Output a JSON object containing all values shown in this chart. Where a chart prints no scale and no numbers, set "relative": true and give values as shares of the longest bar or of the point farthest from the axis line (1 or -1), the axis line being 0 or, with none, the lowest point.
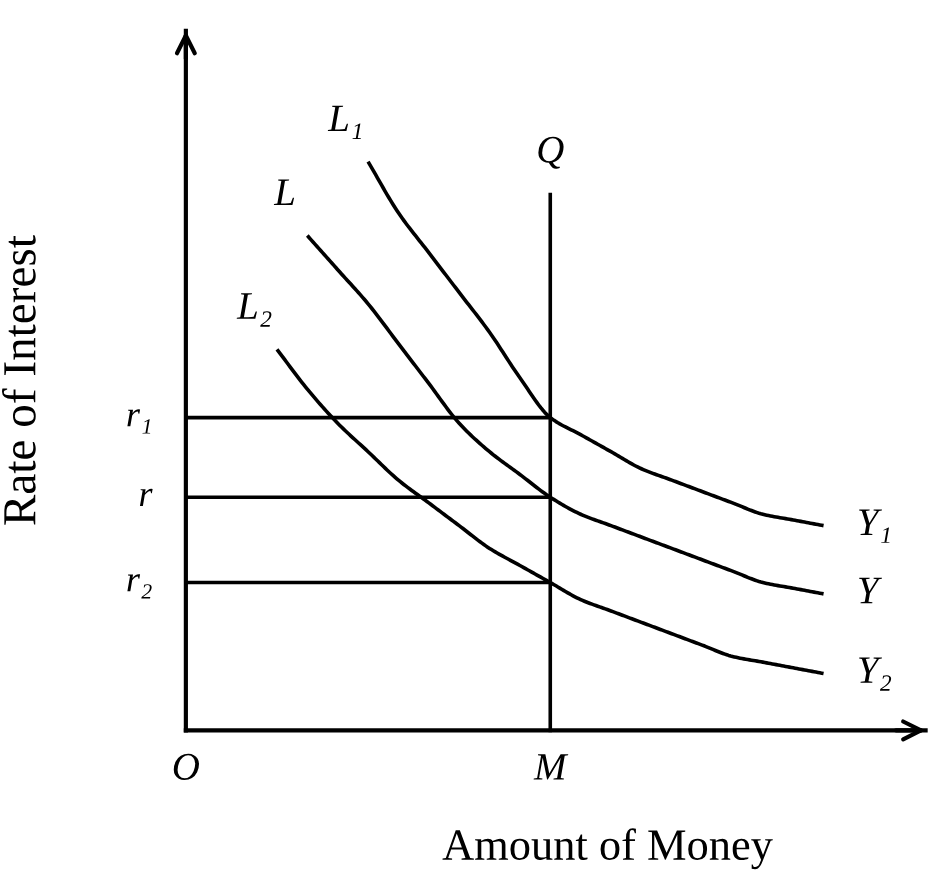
{
  "chart_data": {
    "type": "line",
    "relative": true,
    "xlabel": "Amount of Money",
    "ylabel": "Rate of Interest",
    "categories": [
      "O",
      null,
      null,
      null,
      null,
      null,
      null,
      null,
      null,
      null,
      null,
      null,
      "M",
      null,
      null,
      null,
      null,
      null,
      null,
      null,
      null,
      null
    ],
    "series": [
      {
        "name": "L₁",
        "color": "#000000",
        "values": [
          null,
          null,
          null,
          null,
          null,
          null,
          1.0,
          0.91,
          0.84,
          0.77,
          0.7,
          0.62,
          0.55,
          0.52,
          0.49,
          0.46,
          0.44,
          0.42,
          0.4,
          0.38,
          0.37,
          0.36
        ]
      },
      {
        "name": "L",
        "color": "#000000",
        "values": [
          null,
          null,
          null,
          null,
          0.87,
          0.81,
          0.75,
          0.68,
          0.61,
          0.54,
          0.49,
          0.45,
          0.41,
          0.38,
          0.36,
          0.34,
          0.32,
          0.3,
          0.28,
          0.26,
          0.25,
          0.24
        ]
      },
      {
        "name": "L₂",
        "color": "#000000",
        "values": [
          null,
          null,
          null,
          0.67,
          0.6,
          0.54,
          0.49,
          0.44,
          0.4,
          0.36,
          0.32,
          0.29,
          0.26,
          0.23,
          0.21,
          0.19,
          0.17,
          0.15,
          0.13,
          0.12,
          0.11,
          0.1
        ]
      },
      {
        "color": "#000000",
        "values": [
          0.55,
          0.55,
          0.55,
          0.55,
          0.55,
          0.55,
          0.55,
          0.55,
          0.55,
          0.55,
          0.55,
          0.55,
          0.55,
          null,
          null,
          null,
          null,
          null,
          null,
          null,
          null,
          null
        ]
      },
      {
        "color": "#000000",
        "values": [
          0.41,
          0.41,
          0.41,
          0.41,
          0.41,
          0.41,
          0.41,
          0.41,
          0.41,
          0.41,
          0.41,
          0.41,
          0.41,
          null,
          null,
          null,
          null,
          null,
          null,
          null,
          null,
          null
        ]
      },
      {
        "color": "#000000",
        "values": [
          0.26,
          0.26,
          0.26,
          0.26,
          0.26,
          0.26,
          0.26,
          0.26,
          0.26,
          0.26,
          0.26,
          0.26,
          0.26,
          null,
          null,
          null,
          null,
          null,
          null,
          null,
          null,
          null
        ]
      }
    ],
    "ref_lines": [
      {
        "axis": "x",
        "value": "M",
        "label": "Q",
        "color": "#000000"
      }
    ],
    "annotations": [
      "Y₁",
      "Y",
      "Y₂",
      {
        "text": "r₁",
        "x": "O",
        "y": 0.55
      },
      {
        "text": "r",
        "x": "O",
        "y": 0.41
      },
      {
        "text": "r₂",
        "x": "O",
        "y": 0.26
      }
    ]
  }
}
